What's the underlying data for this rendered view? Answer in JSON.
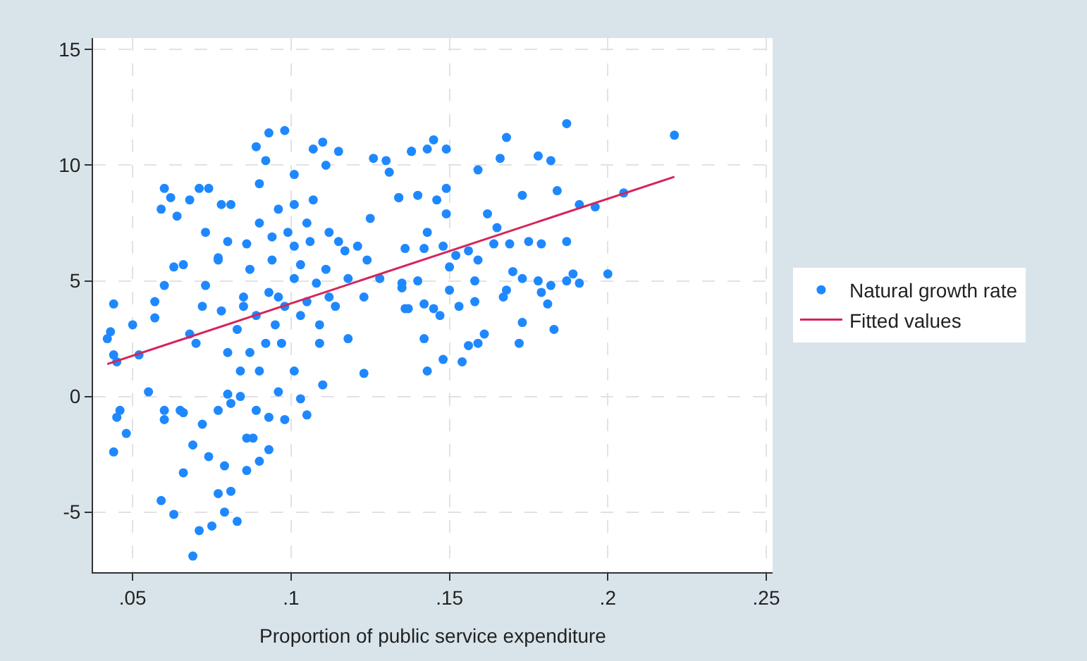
{
  "chart_data": {
    "type": "scatter",
    "xlabel": "Proportion of public service expenditure",
    "xlim": [
      0.0375,
      0.252
    ],
    "xticks": [
      {
        "value": 0.05,
        "label": ".05"
      },
      {
        "value": 0.1,
        "label": ".1"
      },
      {
        "value": 0.15,
        "label": ".15"
      },
      {
        "value": 0.2,
        "label": ".2"
      },
      {
        "value": 0.25,
        "label": ".25"
      }
    ],
    "ylim": [
      -7.6,
      15.5
    ],
    "yticks": [
      -5,
      0,
      5,
      10,
      15
    ],
    "grid": true,
    "legend": "right",
    "series": [
      {
        "name": "Natural growth rate",
        "color": "#1e88ff",
        "marker": "circle",
        "x": [
          0.042,
          0.043,
          0.044,
          0.044,
          0.045,
          0.046,
          0.045,
          0.044,
          0.048,
          0.05,
          0.052,
          0.055,
          0.057,
          0.057,
          0.059,
          0.06,
          0.06,
          0.06,
          0.059,
          0.06,
          0.062,
          0.063,
          0.063,
          0.064,
          0.066,
          0.066,
          0.066,
          0.068,
          0.069,
          0.069,
          0.071,
          0.071,
          0.07,
          0.073,
          0.075,
          0.074,
          0.073,
          0.074,
          0.077,
          0.077,
          0.077,
          0.078,
          0.078,
          0.079,
          0.079,
          0.081,
          0.081,
          0.083,
          0.081,
          0.08,
          0.08,
          0.085,
          0.086,
          0.084,
          0.085,
          0.087,
          0.089,
          0.093,
          0.098,
          0.092,
          0.09,
          0.086,
          0.088,
          0.089,
          0.09,
          0.093,
          0.093,
          0.092,
          0.09,
          0.093,
          0.094,
          0.096,
          0.097,
          0.096,
          0.098,
          0.101,
          0.101,
          0.101,
          0.103,
          0.101,
          0.105,
          0.105,
          0.105,
          0.107,
          0.107,
          0.11,
          0.11,
          0.109,
          0.109,
          0.111,
          0.112,
          0.111,
          0.114,
          0.115,
          0.117,
          0.118,
          0.123,
          0.123,
          0.126,
          0.124,
          0.125,
          0.128,
          0.13,
          0.131,
          0.134,
          0.136,
          0.138,
          0.135,
          0.101,
          0.103,
          0.098,
          0.095,
          0.089,
          0.083,
          0.08,
          0.072,
          0.068,
          0.103,
          0.108,
          0.112,
          0.106,
          0.118,
          0.121,
          0.115,
          0.09,
          0.096,
          0.099,
          0.094,
          0.087,
          0.084,
          0.077,
          0.072,
          0.065,
          0.086,
          0.221,
          0.187,
          0.168,
          0.145,
          0.149,
          0.138,
          0.143,
          0.166,
          0.178,
          0.182,
          0.159,
          0.184,
          0.173,
          0.205,
          0.191,
          0.196,
          0.149,
          0.14,
          0.134,
          0.146,
          0.149,
          0.162,
          0.165,
          0.143,
          0.164,
          0.175,
          0.187,
          0.179,
          0.169,
          0.156,
          0.159,
          0.152,
          0.142,
          0.148,
          0.136,
          0.15,
          0.17,
          0.173,
          0.2,
          0.189,
          0.191,
          0.187,
          0.178,
          0.182,
          0.14,
          0.135,
          0.158,
          0.15,
          0.179,
          0.168,
          0.167,
          0.158,
          0.153,
          0.142,
          0.137,
          0.145,
          0.147,
          0.181,
          0.173,
          0.183,
          0.142,
          0.161,
          0.159,
          0.156,
          0.172,
          0.148,
          0.154,
          0.143
        ],
        "values": [
          2.5,
          2.8,
          4.0,
          1.8,
          1.5,
          -0.6,
          -0.9,
          -2.4,
          -1.6,
          3.1,
          1.8,
          0.2,
          3.4,
          4.1,
          -4.5,
          4.8,
          -0.6,
          -1.0,
          8.1,
          9.0,
          8.6,
          -5.1,
          5.6,
          7.8,
          -3.3,
          5.7,
          -0.7,
          8.5,
          -2.1,
          -6.9,
          -5.8,
          9.0,
          2.3,
          4.8,
          -5.6,
          9.0,
          7.1,
          -2.6,
          5.9,
          6.0,
          -4.2,
          8.3,
          3.7,
          -3.0,
          -5.0,
          -4.1,
          8.3,
          -5.4,
          -0.3,
          0.1,
          6.7,
          4.3,
          -3.2,
          1.1,
          3.9,
          5.5,
          10.8,
          11.4,
          11.5,
          10.2,
          9.2,
          6.6,
          -1.8,
          -0.6,
          -2.8,
          -2.3,
          -0.9,
          2.3,
          1.1,
          4.5,
          5.9,
          4.3,
          2.3,
          0.2,
          -1.0,
          6.5,
          8.3,
          9.6,
          -0.1,
          1.1,
          -0.8,
          4.1,
          7.5,
          10.7,
          8.5,
          11.0,
          0.5,
          3.1,
          2.3,
          10.0,
          7.1,
          5.5,
          3.9,
          10.6,
          6.3,
          2.5,
          1.0,
          4.3,
          10.3,
          5.9,
          7.7,
          5.1,
          10.2,
          9.7,
          8.6,
          3.8,
          10.6,
          4.9,
          5.1,
          5.7,
          3.9,
          3.1,
          3.5,
          2.9,
          1.9,
          3.9,
          2.7,
          3.5,
          4.9,
          4.3,
          6.7,
          5.1,
          6.5,
          6.7,
          7.5,
          8.1,
          7.1,
          6.9,
          1.9,
          0.0,
          -0.6,
          -1.2,
          -0.6,
          -1.8,
          11.3,
          11.8,
          11.2,
          11.1,
          10.7,
          10.6,
          10.7,
          10.3,
          10.4,
          10.2,
          9.8,
          8.9,
          8.7,
          8.8,
          8.3,
          8.2,
          9.0,
          8.7,
          8.6,
          8.5,
          7.9,
          7.9,
          7.3,
          7.1,
          6.6,
          6.7,
          6.7,
          6.6,
          6.6,
          6.3,
          5.9,
          6.1,
          6.4,
          6.5,
          6.4,
          5.6,
          5.4,
          5.1,
          5.3,
          5.3,
          4.9,
          5.0,
          5.0,
          4.8,
          5.0,
          4.7,
          5.0,
          4.6,
          4.5,
          4.6,
          4.3,
          4.1,
          3.9,
          4.0,
          3.8,
          3.8,
          3.5,
          4.0,
          3.2,
          2.9,
          2.5,
          2.7,
          2.3,
          2.2,
          2.3,
          1.6,
          1.5,
          1.1
        ]
      },
      {
        "name": "Fitted values",
        "color": "#d6245a",
        "type": "line",
        "marker": "none",
        "x": [
          0.042,
          0.221
        ],
        "values": [
          1.4,
          9.5
        ]
      }
    ]
  }
}
